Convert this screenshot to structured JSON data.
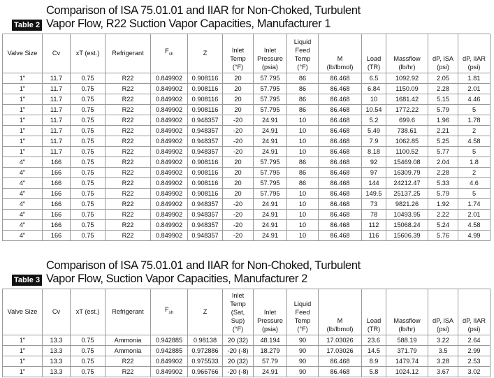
{
  "tables": [
    {
      "label": "Table 2",
      "title": [
        "Comparison of ISA 75.01.01 and IIAR for Non-Choked, Turbulent",
        "Vapor Flow, R22 Suction Vapor Capacities, Manufacturer 1"
      ],
      "headers": [
        [
          "Valve Size"
        ],
        [
          "Cv"
        ],
        [
          "xT (est.)"
        ],
        [
          "Refrigerant"
        ],
        {
          "base": "F",
          "sub": "sh"
        },
        [
          "Z"
        ],
        [
          "Inlet",
          "Temp",
          "(°F)"
        ],
        [
          "Inlet",
          "Pressure",
          "(psia)"
        ],
        [
          "Liquid",
          "Feed",
          "Temp",
          "(°F)"
        ],
        [
          "M",
          "(lb/lbmol)"
        ],
        [
          "Load",
          "(TR)"
        ],
        [
          "Massflow",
          "(lb/hr)"
        ],
        [
          "dP, ISA",
          "(psi)"
        ],
        [
          "dP, IIAR",
          "(psi)"
        ]
      ],
      "rows": [
        [
          "1\"",
          "11.7",
          "0.75",
          "R22",
          "0.849902",
          "0.908116",
          "20",
          "57.795",
          "86",
          "86.468",
          "6.5",
          "1092.92",
          "2.05",
          "1.81"
        ],
        [
          "1\"",
          "11.7",
          "0.75",
          "R22",
          "0.849902",
          "0.908116",
          "20",
          "57.795",
          "86",
          "86.468",
          "6.84",
          "1150.09",
          "2.28",
          "2.01"
        ],
        [
          "1\"",
          "11.7",
          "0.75",
          "R22",
          "0.849902",
          "0.908116",
          "20",
          "57.795",
          "86",
          "86.468",
          "10",
          "1681.42",
          "5.15",
          "4.46"
        ],
        [
          "1\"",
          "11.7",
          "0.75",
          "R22",
          "0.849902",
          "0.908116",
          "20",
          "57.795",
          "86",
          "86.468",
          "10.54",
          "1772.22",
          "5.79",
          "5"
        ],
        [
          "1\"",
          "11.7",
          "0.75",
          "R22",
          "0.849902",
          "0.948357",
          "-20",
          "24.91",
          "10",
          "86.468",
          "5.2",
          "699.6",
          "1.96",
          "1.78"
        ],
        [
          "1\"",
          "11.7",
          "0.75",
          "R22",
          "0.849902",
          "0.948357",
          "-20",
          "24.91",
          "10",
          "86.468",
          "5.49",
          "738.61",
          "2.21",
          "2"
        ],
        [
          "1\"",
          "11.7",
          "0.75",
          "R22",
          "0.849902",
          "0.948357",
          "-20",
          "24.91",
          "10",
          "86.468",
          "7.9",
          "1062.85",
          "5.25",
          "4.58"
        ],
        [
          "1\"",
          "11.7",
          "0.75",
          "R22",
          "0.849902",
          "0.948357",
          "-20",
          "24.91",
          "10",
          "86.468",
          "8.18",
          "1100.52",
          "5.77",
          "5"
        ],
        [
          "4\"",
          "166",
          "0.75",
          "R22",
          "0.849902",
          "0.908116",
          "20",
          "57.795",
          "86",
          "86.468",
          "92",
          "15469.08",
          "2.04",
          "1.8"
        ],
        [
          "4\"",
          "166",
          "0.75",
          "R22",
          "0.849902",
          "0.908116",
          "20",
          "57.795",
          "86",
          "86.468",
          "97",
          "16309.79",
          "2.28",
          "2"
        ],
        [
          "4\"",
          "166",
          "0.75",
          "R22",
          "0.849902",
          "0.908116",
          "20",
          "57.795",
          "86",
          "86.468",
          "144",
          "24212.47",
          "5.33",
          "4.6"
        ],
        [
          "4\"",
          "166",
          "0.75",
          "R22",
          "0.849902",
          "0.908116",
          "20",
          "57.795",
          "10",
          "86.468",
          "149.5",
          "25137.25",
          "5.79",
          "5"
        ],
        [
          "4\"",
          "166",
          "0.75",
          "R22",
          "0.849902",
          "0.948357",
          "-20",
          "24.91",
          "10",
          "86.468",
          "73",
          "9821.26",
          "1.92",
          "1.74"
        ],
        [
          "4\"",
          "166",
          "0.75",
          "R22",
          "0.849902",
          "0.948357",
          "-20",
          "24.91",
          "10",
          "86.468",
          "78",
          "10493.95",
          "2.22",
          "2.01"
        ],
        [
          "4\"",
          "166",
          "0.75",
          "R22",
          "0.849902",
          "0.948357",
          "-20",
          "24.91",
          "10",
          "86.468",
          "112",
          "15068.24",
          "5.24",
          "4.58"
        ],
        [
          "4\"",
          "166",
          "0.75",
          "R22",
          "0.849902",
          "0.948357",
          "-20",
          "24.91",
          "10",
          "86.468",
          "116",
          "15606.39",
          "5.76",
          "4.99"
        ]
      ]
    },
    {
      "label": "Table 3",
      "title": [
        "Comparison of ISA 75.01.01 and IIAR for Non-Choked, Turbulent",
        "Vapor Flow, Suction Vapor Capacities, Manufacturer 2"
      ],
      "headers": [
        [
          "Valve Size"
        ],
        [
          "Cv"
        ],
        [
          "xT (est.)"
        ],
        [
          "Refrigerant"
        ],
        {
          "base": "F",
          "sub": "sh"
        },
        [
          "Z"
        ],
        [
          "Inlet",
          "Temp",
          "(Sat,",
          "Sup)",
          "(°F)"
        ],
        [
          "Inlet",
          "Pressure",
          "(psia)"
        ],
        [
          "Liquid",
          "Feed",
          "Temp",
          "(°F)"
        ],
        [
          "M",
          "(lb/lbmol)"
        ],
        [
          "Load",
          "(TR)"
        ],
        [
          "Massflow",
          "(lb/hr)"
        ],
        [
          "dP, ISA",
          "(psi)"
        ],
        [
          "dP, IIAR",
          "(psi)"
        ]
      ],
      "rows": [
        [
          "1\"",
          "13.3",
          "0.75",
          "Ammonia",
          "0.942885",
          "0.98138",
          "20 (32)",
          "48.194",
          "90",
          "17.03026",
          "23.6",
          "588.19",
          "3.22",
          "2.64"
        ],
        [
          "1\"",
          "13.3",
          "0.75",
          "Ammonia",
          "0.942885",
          "0.972886",
          "-20 (-8)",
          "18.279",
          "90",
          "17.03026",
          "14.5",
          "371.79",
          "3.5",
          "2.99"
        ],
        [
          "1\"",
          "13.3",
          "0.75",
          "R22",
          "0.849902",
          "0.975533",
          "20 (32)",
          "57.79",
          "90",
          "86.468",
          "8.9",
          "1479.74",
          "3.28",
          "2.53"
        ],
        [
          "1\"",
          "13.3",
          "0.75",
          "R22",
          "0.849902",
          "0.966766",
          "-20 (-8)",
          "24.91",
          "90",
          "86.468",
          "5.8",
          "1024.12",
          "3.67",
          "3.02"
        ]
      ]
    }
  ]
}
